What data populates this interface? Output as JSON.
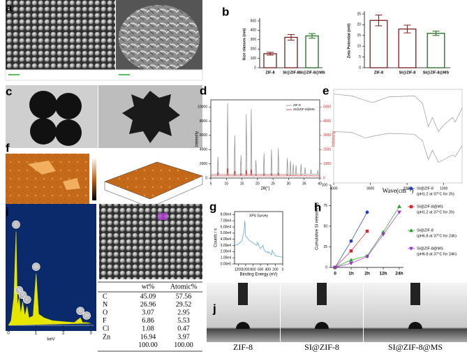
{
  "panel_labels": [
    "a",
    "b",
    "c",
    "d",
    "e",
    "f",
    "g",
    "h",
    "i",
    "j"
  ],
  "chart_data": [
    {
      "type": "bar",
      "ylabel": "Size classes (nm)",
      "categories": [
        "ZIF-8",
        "SI@ZIF-8",
        "SI@ZIF-8@MS"
      ],
      "values": [
        150,
        325,
        340
      ],
      "errors": [
        15,
        30,
        25
      ],
      "colors": [
        "#7b1c1c",
        "#7b1c1c",
        "#1e6b1e"
      ],
      "ylim": [
        0,
        500
      ],
      "yticks": [
        0,
        100,
        200,
        300,
        400,
        500
      ]
    },
    {
      "type": "bar",
      "ylabel": "Zeta Potential (mV)",
      "categories": [
        "ZIF-8",
        "SI@ZIF-8",
        "SI@ZIF-8@MS"
      ],
      "values": [
        22,
        18,
        16
      ],
      "errors": [
        2.5,
        1.8,
        1
      ],
      "colors": [
        "#7b1c1c",
        "#7b1c1c",
        "#1e6b1e"
      ],
      "ylim": [
        0,
        25
      ],
      "yticks": [
        0,
        5,
        10,
        15,
        20,
        25
      ]
    },
    {
      "type": "line",
      "xlabel": "2θ(°)",
      "ylabel": "Intensity",
      "y2label": "Intensity",
      "frame": true,
      "legend": "upper right",
      "x": [
        5,
        7.1,
        7.3,
        7.5,
        10.2,
        10.4,
        10.6,
        12.5,
        12.7,
        12.9,
        14.5,
        14.7,
        14.9,
        16.2,
        16.4,
        16.6,
        17.8,
        18.0,
        18.2,
        19.3,
        19.5,
        19.7,
        21.9,
        22.1,
        22.3,
        24.3,
        24.5,
        24.7,
        26.5,
        26.7,
        26.9,
        29.4,
        29.6,
        29.8,
        30.4,
        30.6,
        30.8,
        31.3,
        31.5,
        31.7,
        32.2,
        32.4,
        32.6,
        33.8,
        34.0,
        34.2,
        35.1,
        35.3,
        35.5,
        37.0,
        37.2,
        37.4,
        39.2,
        39.4,
        39.6,
        40
      ],
      "series": [
        {
          "name": "ZIF-8",
          "color": "#888888",
          "values": [
            500,
            500,
            3000,
            500,
            500,
            10500,
            500,
            500,
            6000,
            500,
            500,
            3200,
            500,
            500,
            9000,
            500,
            500,
            9700,
            500,
            500,
            2500,
            500,
            500,
            3500,
            500,
            500,
            4000,
            500,
            500,
            4200,
            500,
            500,
            2800,
            500,
            500,
            2400,
            500,
            500,
            2000,
            500,
            500,
            1800,
            500,
            500,
            2000,
            500,
            500,
            1500,
            500,
            500,
            1200,
            500,
            500,
            1100,
            500,
            500
          ]
        },
        {
          "name": "SI@ZIF-8@MS",
          "color": "#d62728",
          "axis": "y2",
          "values": [
            150,
            150,
            400,
            150,
            150,
            700,
            150,
            150,
            500,
            150,
            150,
            300,
            150,
            150,
            550,
            150,
            150,
            600,
            150,
            150,
            250,
            150,
            150,
            300,
            150,
            150,
            320,
            150,
            150,
            350,
            150,
            150,
            250,
            150,
            150,
            220,
            150,
            150,
            200,
            150,
            150,
            200,
            150,
            150,
            220,
            150,
            150,
            180,
            150,
            150,
            170,
            150,
            150,
            160,
            150,
            150
          ]
        }
      ],
      "xlim": [
        5,
        40
      ],
      "xticks": [
        5,
        10,
        15,
        20,
        25,
        30,
        35,
        40
      ],
      "ylim": [
        0,
        11000
      ],
      "yticks": [
        0,
        2000,
        4000,
        6000,
        8000,
        10000
      ],
      "y2lim": [
        0,
        5500
      ],
      "y2ticks": [
        0,
        1000,
        2000,
        3000,
        4000,
        5000
      ]
    },
    {
      "type": "line",
      "xlabel": "Wave(cm⁻¹)",
      "frame": true,
      "x": [
        4000,
        3500,
        3135,
        2930,
        2500,
        1800,
        1580,
        1420,
        1310,
        1145,
        995,
        760,
        690,
        500
      ],
      "series": [
        {
          "name": null,
          "color": "#999999",
          "values": [
            95,
            93,
            88,
            86,
            92,
            93,
            85,
            60,
            70,
            55,
            62,
            70,
            65,
            80
          ]
        },
        {
          "name": null,
          "color": "#999999",
          "values": [
            55,
            54,
            48,
            50,
            53,
            52,
            45,
            25,
            35,
            22,
            25,
            30,
            28,
            40
          ]
        }
      ],
      "xlim": [
        4000,
        500
      ],
      "xticks": [
        4000,
        3000,
        2000,
        1000
      ],
      "ylim": [
        0,
        100
      ]
    },
    {
      "type": "line",
      "title": "XPS Survey",
      "xlabel": "Binding Energy (eV)",
      "ylabel": "Counts / s",
      "frame": true,
      "x": [
        1300,
        1200,
        1100,
        1045,
        1022,
        1000,
        900,
        800,
        700,
        685,
        600,
        532,
        500,
        400,
        398,
        300,
        285,
        200,
        100,
        0
      ],
      "series": [
        {
          "name": null,
          "color": "#4a9fd8",
          "values": [
            30000,
            32000,
            38000,
            52000,
            70000,
            45000,
            38000,
            34000,
            30000,
            35000,
            25000,
            30000,
            22000,
            18000,
            20000,
            15000,
            22000,
            13000,
            12000,
            11000
          ]
        }
      ],
      "xlim": [
        1300,
        0
      ],
      "xticks": [
        1200,
        1000,
        800,
        600,
        400,
        200,
        0
      ],
      "ylim": [
        0,
        85000
      ],
      "yticks": [
        {
          "value": 0,
          "label": "0.00e0"
        },
        {
          "value": 10000,
          "label": "1.00e4"
        },
        {
          "value": 20000,
          "label": "2.00e4"
        },
        {
          "value": 30000,
          "label": "3.00e4"
        },
        {
          "value": 40000,
          "label": "4.00e4"
        },
        {
          "value": 50000,
          "label": "5.00e4"
        },
        {
          "value": 60000,
          "label": "6.00e4"
        },
        {
          "value": 70000,
          "label": "7.00e4"
        },
        {
          "value": 80000,
          "label": "8.00e4"
        }
      ]
    },
    {
      "type": "line",
      "ylabel": "Cumulative SI release(%)",
      "frame": false,
      "legend": "right",
      "categories": [
        "0",
        "1h",
        "2h",
        "12h",
        "24h"
      ],
      "series": [
        {
          "name": "SI@ZIF-8",
          "condition": "(pH1.2 at 37°C for 2h)",
          "color": "#1f3fbf",
          "marker": "circle",
          "values": [
            0,
            32,
            67,
            null,
            null
          ]
        },
        {
          "name": "SI@ZIF-8@MS",
          "condition": "(pH1.2 at 37°C for 2h)",
          "color": "#d62728",
          "marker": "square",
          "values": [
            0,
            20,
            44,
            null,
            null
          ]
        },
        {
          "name": "SI@ZIF-8",
          "condition": "(pH6.8 at 37°C for 24h)",
          "color": "#2ca02c",
          "marker": "triangle",
          "values": [
            0,
            9,
            14,
            43,
            74
          ]
        },
        {
          "name": "SI@ZIF-8@MS",
          "condition": "(pH6.8 at 37°C for 24h)",
          "color": "#9b30d0",
          "marker": "triangle-down",
          "values": [
            0,
            5,
            13,
            40,
            67
          ]
        }
      ],
      "ylim": [
        0,
        100
      ],
      "yticks": [
        0,
        25,
        50,
        75,
        100
      ]
    },
    {
      "type": "area",
      "xlabel": "keV",
      "color": "#e6e600",
      "x": [
        0,
        0.1,
        0.2,
        0.28,
        0.33,
        0.39,
        0.45,
        0.52,
        0.6,
        0.68,
        0.75,
        0.9,
        1.01,
        1.1,
        1.3,
        1.6,
        2.0,
        2.4,
        2.62,
        2.7,
        2.85,
        3.0
      ],
      "series": [
        {
          "name": null,
          "color": "#e6e600",
          "values": [
            0,
            5,
            30,
            100,
            20,
            30,
            12,
            25,
            10,
            20,
            8,
            10,
            55,
            12,
            8,
            5,
            4,
            3,
            8,
            3,
            3,
            2
          ]
        }
      ],
      "annotations": [
        {
          "label": "C",
          "x": 0.28
        },
        {
          "label": "N",
          "x": 0.39
        },
        {
          "label": "O",
          "x": 0.52
        },
        {
          "label": "F",
          "x": 0.68
        },
        {
          "label": "Zn",
          "x": 1.01
        },
        {
          "label": "Cl",
          "x": 2.62
        },
        {
          "label": "Zn",
          "x": 2.85
        }
      ],
      "xlim": [
        0,
        3.1
      ],
      "xticks": [
        0,
        1,
        2,
        3
      ],
      "ylim": [
        0,
        125
      ]
    }
  ],
  "table": {
    "header": [
      null,
      "wt%",
      "Atomic%"
    ],
    "rows": [
      [
        "C",
        "45.09",
        "57.56"
      ],
      [
        "N",
        "26.96",
        "29.52"
      ],
      [
        "O",
        "3.07",
        "2.95"
      ],
      [
        "F",
        "6.86",
        "5.53"
      ],
      [
        "Cl",
        "1.08",
        "0.47"
      ],
      [
        "Zn",
        "16.94",
        "3.97"
      ],
      [
        null,
        "100.00",
        "100.00"
      ]
    ]
  },
  "contact_angle": {
    "labels": [
      "ZIF-8",
      "SI@ZIF-8",
      "SI@ZIF-8@MS"
    ]
  }
}
